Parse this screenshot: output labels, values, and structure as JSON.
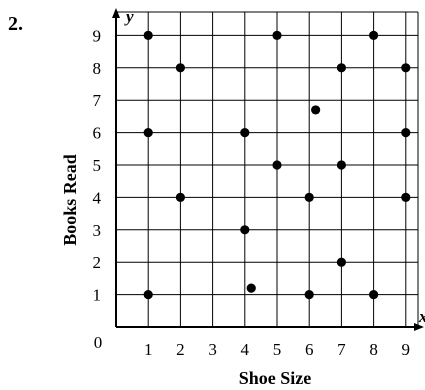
{
  "problem_number": "2.",
  "chart_data": {
    "type": "scatter",
    "title": "",
    "xlabel": "Shoe Size",
    "ylabel": "Books Read",
    "x_axis_letter": "x",
    "y_axis_letter": "y",
    "origin_label": "0",
    "xlim": [
      0,
      9.5
    ],
    "ylim": [
      0,
      9.6
    ],
    "x_ticks": [
      "1",
      "2",
      "3",
      "4",
      "5",
      "6",
      "7",
      "8",
      "9"
    ],
    "y_ticks": [
      "1",
      "2",
      "3",
      "4",
      "5",
      "6",
      "7",
      "8",
      "9"
    ],
    "grid": true,
    "legend": "none",
    "points": [
      {
        "x": 1,
        "y": 9
      },
      {
        "x": 1,
        "y": 6
      },
      {
        "x": 1,
        "y": 1
      },
      {
        "x": 2,
        "y": 8
      },
      {
        "x": 2,
        "y": 4
      },
      {
        "x": 4,
        "y": 6
      },
      {
        "x": 4,
        "y": 3
      },
      {
        "x": 4.2,
        "y": 1.2
      },
      {
        "x": 5,
        "y": 9
      },
      {
        "x": 5,
        "y": 5
      },
      {
        "x": 6,
        "y": 4
      },
      {
        "x": 6,
        "y": 1
      },
      {
        "x": 6.2,
        "y": 6.7
      },
      {
        "x": 7,
        "y": 8
      },
      {
        "x": 7,
        "y": 5
      },
      {
        "x": 7,
        "y": 2
      },
      {
        "x": 8,
        "y": 9
      },
      {
        "x": 8,
        "y": 1
      },
      {
        "x": 9,
        "y": 8
      },
      {
        "x": 9,
        "y": 6
      },
      {
        "x": 9,
        "y": 4
      }
    ]
  }
}
